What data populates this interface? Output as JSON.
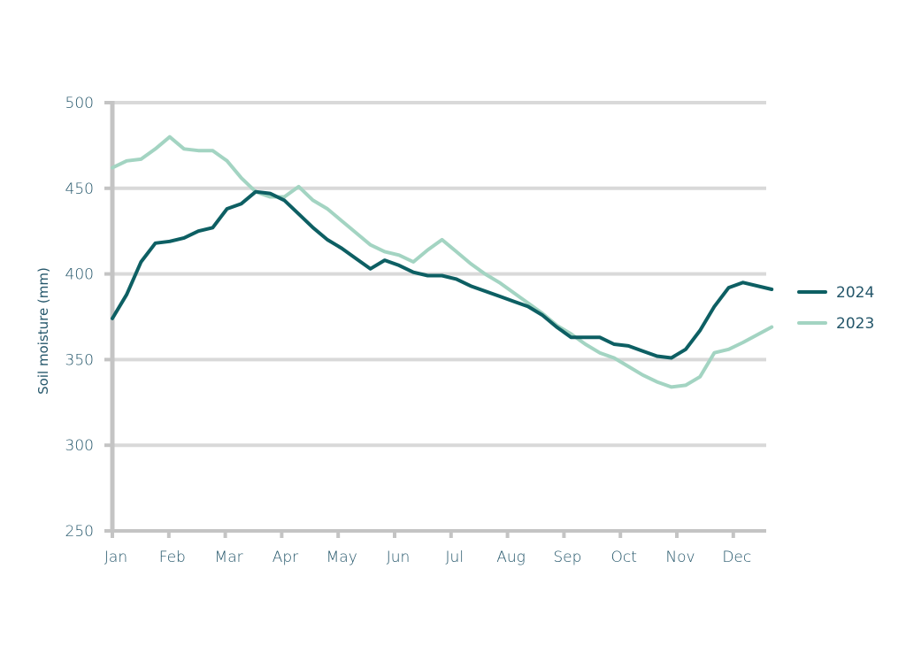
{
  "chart_data": {
    "type": "line",
    "title": "",
    "xlabel": "",
    "ylabel": "Soil moisture (mm)",
    "ylim": [
      250,
      500
    ],
    "yticks": [
      250,
      300,
      350,
      400,
      450,
      500
    ],
    "month_labels": [
      "Jan",
      "Feb",
      "Mar",
      "Apr",
      "May",
      "Jun",
      "Jul",
      "Aug",
      "Sep",
      "Oct",
      "Nov",
      "Dec"
    ],
    "x_unit": "week_of_year",
    "x": [
      1,
      2,
      3,
      4,
      5,
      6,
      7,
      8,
      9,
      10,
      11,
      12,
      13,
      14,
      15,
      16,
      17,
      18,
      19,
      20,
      21,
      22,
      23,
      24,
      25,
      26,
      27,
      28,
      29,
      30,
      31,
      32,
      33,
      34,
      35,
      36,
      37,
      38,
      39,
      40,
      41,
      42,
      43,
      44,
      45,
      47
    ],
    "grid": true,
    "legend_position": "right",
    "series": [
      {
        "name": "2024",
        "color": "#0d5f63",
        "values": [
          374,
          388,
          407,
          418,
          419,
          421,
          425,
          427,
          438,
          441,
          448,
          447,
          443,
          435,
          427,
          420,
          415,
          409,
          403,
          408,
          405,
          401,
          399,
          399,
          397,
          393,
          390,
          387,
          384,
          381,
          376,
          369,
          363,
          363,
          363,
          359,
          358,
          355,
          352,
          351,
          356,
          367,
          381,
          392,
          395,
          391
        ]
      },
      {
        "name": "2023",
        "color": "#a3d4c2",
        "values": [
          462,
          466,
          467,
          473,
          480,
          473,
          472,
          472,
          466,
          456,
          448,
          445,
          445,
          451,
          443,
          438,
          431,
          424,
          417,
          413,
          411,
          407,
          414,
          420,
          413,
          406,
          400,
          395,
          389,
          383,
          377,
          370,
          365,
          359,
          354,
          351,
          346,
          341,
          337,
          334,
          335,
          340,
          354,
          356,
          360,
          369
        ]
      }
    ]
  }
}
